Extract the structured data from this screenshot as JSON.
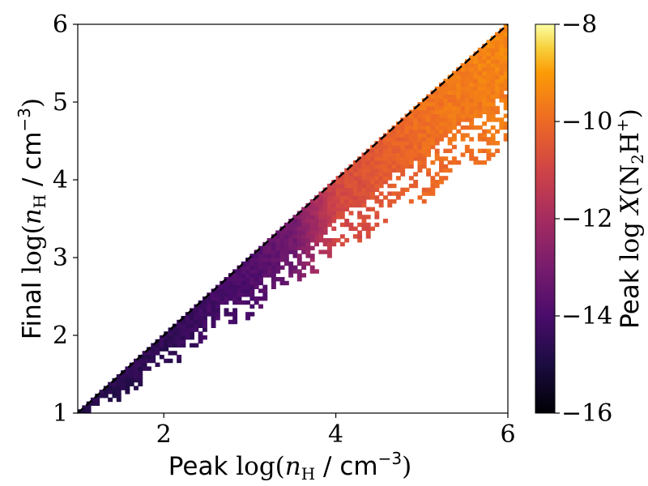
{
  "chart_data": {
    "type": "heatmap",
    "xlabel": "Peak log(n_H / cm^-3)",
    "xlabel_parts": {
      "prefix": "Peak ",
      "log": "log(",
      "var": "n",
      "sub": "H",
      "unit": " / cm",
      "exp": "−3",
      "close": ")"
    },
    "ylabel": "Final log(n_H / cm^-3)",
    "ylabel_parts": {
      "prefix": "Final ",
      "log": "log(",
      "var": "n",
      "sub": "H",
      "unit": " / cm",
      "exp": "−3",
      "close": ")"
    },
    "colorbar_label": "Peak log X(N2H+)",
    "colorbar_label_parts": {
      "prefix": "Peak ",
      "log": "log ",
      "var": "X",
      "open": "(N",
      "sub": "2",
      "mid": "H",
      "sup": "+",
      "close": ")"
    },
    "xlim": [
      1,
      6
    ],
    "ylim": [
      1,
      6
    ],
    "clim": [
      -16,
      -8
    ],
    "colormap": "inferno",
    "x_ticks": [
      "2",
      "4",
      "6"
    ],
    "y_ticks": [
      "1",
      "2",
      "3",
      "4",
      "5",
      "6"
    ],
    "colorbar_ticks": [
      "−8",
      "−10",
      "−12",
      "−14",
      "−16"
    ],
    "reference_line": {
      "style": "dashed",
      "color": "#000000",
      "x": [
        1,
        6
      ],
      "y": [
        1,
        6
      ]
    },
    "color_trend": [
      {
        "peak_log_nH": 1.0,
        "log_X": -14.8
      },
      {
        "peak_log_nH": 2.0,
        "log_X": -14.5
      },
      {
        "peak_log_nH": 3.0,
        "log_X": -13.8
      },
      {
        "peak_log_nH": 3.5,
        "log_X": -13.0
      },
      {
        "peak_log_nH": 4.0,
        "log_X": -10.8
      },
      {
        "peak_log_nH": 5.0,
        "log_X": -9.8
      },
      {
        "peak_log_nH": 6.0,
        "log_X": -9.3
      }
    ]
  }
}
